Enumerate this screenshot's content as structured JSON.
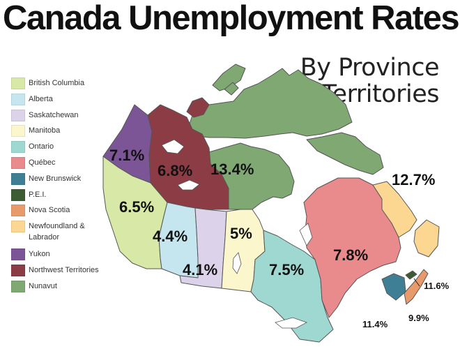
{
  "title": "Canada Unemployment Rates",
  "subtitle_line1": "By Province",
  "subtitle_line2": "& Territories",
  "legend": [
    {
      "label": "British Columbia",
      "color": "#d8e8a6"
    },
    {
      "label": "Alberta",
      "color": "#c5e6ef"
    },
    {
      "label": "Saskatchewan",
      "color": "#dcd3ea"
    },
    {
      "label": "Manitoba",
      "color": "#fbf6cc"
    },
    {
      "label": "Ontario",
      "color": "#9ed8d0"
    },
    {
      "label": "Québec",
      "color": "#e98a8c"
    },
    {
      "label": "New Brunswick",
      "color": "#3f7f96"
    },
    {
      "label": "P.E.I.",
      "color": "#3d5c34"
    },
    {
      "label": "Nova Scotia",
      "color": "#e89a6a"
    },
    {
      "label": "Newfoundland &\nLabrador",
      "color": "#fbd792"
    },
    {
      "label": "Yukon",
      "color": "#7b5596"
    },
    {
      "label": "Northwest Territories",
      "color": "#8c3c44"
    },
    {
      "label": "Nunavut",
      "color": "#7fa872"
    }
  ],
  "rates": {
    "yukon": "7.1%",
    "northwest_territories": "6.8%",
    "nunavut": "13.4%",
    "newfoundland_labrador": "12.7%",
    "british_columbia": "6.5%",
    "alberta": "4.4%",
    "saskatchewan": "4.1%",
    "manitoba": "5%",
    "ontario": "7.5%",
    "quebec": "7.8%",
    "pei": "11.6%",
    "new_brunswick": "11.4%",
    "nova_scotia": "9.9%"
  }
}
